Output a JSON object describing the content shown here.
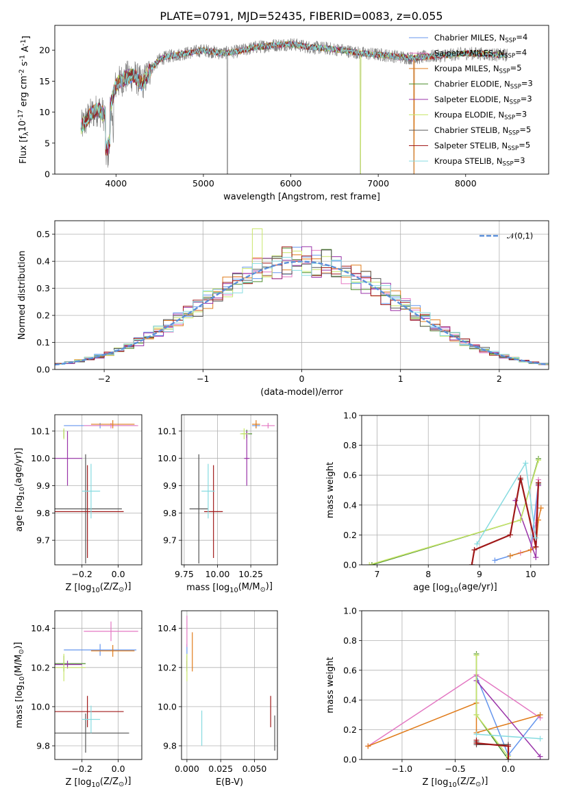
{
  "title": "PLATE=0791, MJD=52435, FIBERID=0083, z=0.055",
  "colors": {
    "chabrier_miles": "#6495ed",
    "salpeter_miles": "#e377c2",
    "kroupa_miles": "#e07b1a",
    "chabrier_elodie": "#4f8f2f",
    "salpeter_elodie": "#9932a8",
    "kroupa_elodie": "#c8e66a",
    "chabrier_stelib": "#555555",
    "salpeter_stelib": "#a01818",
    "kroupa_stelib": "#86dbe0",
    "data": "#808080",
    "normal": "#5b8fd9"
  },
  "chart_data": [
    {
      "type": "line",
      "xlabel": "wavelength [Angstrom, rest frame]",
      "ylabel": "Flux [f$_\\lambda$10$^{-17}$ erg cm$^{-2}$ s$^{-1}$ A$^{-1}$]",
      "xlim": [
        3300,
        8950
      ],
      "ylim": [
        0,
        24
      ],
      "xticks": [
        4000,
        5000,
        6000,
        7000,
        8000
      ],
      "yticks": [
        0,
        5,
        10,
        15,
        20
      ],
      "legend_position": "upper right",
      "legend": [
        {
          "label": "Chabrier MILES, N$_{SSP}$=4",
          "color": "#6495ed"
        },
        {
          "label": "Salpeter MILES, N$_{SSP}$=4",
          "color": "#e377c2"
        },
        {
          "label": "Kroupa MILES, N$_{SSP}$=5",
          "color": "#e07b1a"
        },
        {
          "label": "Chabrier ELODIE, N$_{SSP}$=3",
          "color": "#4f8f2f"
        },
        {
          "label": "Salpeter ELODIE, N$_{SSP}$=3",
          "color": "#9932a8"
        },
        {
          "label": "Kroupa ELODIE, N$_{SSP}$=3",
          "color": "#c8e66a"
        },
        {
          "label": "Chabrier STELIB, N$_{SSP}$=5",
          "color": "#555555"
        },
        {
          "label": "Salpeter STELIB, N$_{SSP}$=5",
          "color": "#a01818"
        },
        {
          "label": "Kroupa STELIB, N$_{SSP}$=3",
          "color": "#86dbe0"
        }
      ],
      "continuum": {
        "wavelength": [
          3600,
          3700,
          3800,
          3900,
          4000,
          4100,
          4200,
          4300,
          4400,
          4500,
          4600,
          4800,
          5000,
          5200,
          5400,
          5600,
          5800,
          6000,
          6200,
          6400,
          6600,
          6800,
          7000,
          7200,
          7400,
          7600,
          7800,
          8000,
          8200,
          8400
        ],
        "flux": [
          7.5,
          9.5,
          10.5,
          9.0,
          14.5,
          15.5,
          16.0,
          14.5,
          17.0,
          18.5,
          19.0,
          19.5,
          20.0,
          19.5,
          19.8,
          20.5,
          20.8,
          21.0,
          20.5,
          20.3,
          20.0,
          19.5,
          19.3,
          19.0,
          18.7,
          19.0,
          19.2,
          19.5,
          19.4,
          19.2
        ]
      }
    },
    {
      "type": "line",
      "xlabel": "(data-model)/error",
      "ylabel": "Normed distribution",
      "xlim": [
        -2.5,
        2.5
      ],
      "ylim": [
        0,
        0.55
      ],
      "xticks": [
        -2,
        -1,
        0,
        1,
        2
      ],
      "yticks": [
        0.0,
        0.1,
        0.2,
        0.3,
        0.4,
        0.5
      ],
      "legend_position": "upper right",
      "normal_label": "$\\mathcal{N}(0,1)$"
    },
    {
      "type": "scatter",
      "xlabel": "Z [log$_{10}$(Z/Z$_\\odot$)]",
      "ylabel": "age  [log$_{10}$(age/yr)]",
      "xlim": [
        -0.35,
        0.13
      ],
      "ylim": [
        9.61,
        10.16
      ],
      "xticks": [
        -0.2,
        0.0
      ],
      "yticks": [
        9.7,
        9.8,
        9.9,
        10.0,
        10.1
      ],
      "points": [
        {
          "series": "Chabrier MILES",
          "x": -0.1,
          "y": 10.12,
          "xerr": 0.2,
          "yerr": 0.01
        },
        {
          "series": "Salpeter MILES",
          "x": -0.04,
          "y": 10.12,
          "xerr": 0.15,
          "yerr": 0.01
        },
        {
          "series": "Kroupa MILES",
          "x": -0.03,
          "y": 10.125,
          "xerr": 0.12,
          "yerr": 0.015
        },
        {
          "series": "Chabrier ELODIE",
          "x": -0.3,
          "y": 10.09,
          "xerr": 0.0,
          "yerr": 0.015
        },
        {
          "series": "Salpeter ELODIE",
          "x": -0.28,
          "y": 10.0,
          "xerr": 0.08,
          "yerr": 0.1
        },
        {
          "series": "Kroupa ELODIE",
          "x": -0.3,
          "y": 10.09,
          "xerr": 0.0,
          "yerr": 0.02
        },
        {
          "series": "Chabrier STELIB",
          "x": -0.18,
          "y": 9.815,
          "xerr": 0.2,
          "yerr": 0.2
        },
        {
          "series": "Salpeter STELIB",
          "x": -0.17,
          "y": 9.805,
          "xerr": 0.2,
          "yerr": 0.17
        },
        {
          "series": "Kroupa STELIB",
          "x": -0.15,
          "y": 9.88,
          "xerr": 0.05,
          "yerr": 0.1
        }
      ]
    },
    {
      "type": "scatter",
      "xlabel": "mass [log$_{10}$(M/M$_\\odot$)]",
      "ylabel": "",
      "xlim": [
        9.73,
        10.45
      ],
      "ylim": [
        9.61,
        10.16
      ],
      "xticks": [
        9.75,
        10.0,
        10.25
      ],
      "yticks": [
        9.7,
        9.8,
        9.9,
        10.0,
        10.1
      ],
      "points": [
        {
          "series": "Chabrier MILES",
          "x": 10.29,
          "y": 10.12,
          "xerr": 0.03,
          "yerr": 0.01
        },
        {
          "series": "Salpeter MILES",
          "x": 10.38,
          "y": 10.12,
          "xerr": 0.05,
          "yerr": 0.01
        },
        {
          "series": "Kroupa MILES",
          "x": 10.29,
          "y": 10.125,
          "xerr": 0.03,
          "yerr": 0.015
        },
        {
          "series": "Chabrier ELODIE",
          "x": 10.22,
          "y": 10.09,
          "xerr": 0.04,
          "yerr": 0.015
        },
        {
          "series": "Salpeter ELODIE",
          "x": 10.22,
          "y": 10.0,
          "xerr": 0.02,
          "yerr": 0.1
        },
        {
          "series": "Kroupa ELODIE",
          "x": 10.2,
          "y": 10.09,
          "xerr": 0.03,
          "yerr": 0.02
        },
        {
          "series": "Chabrier STELIB",
          "x": 9.86,
          "y": 9.815,
          "xerr": 0.07,
          "yerr": 0.2
        },
        {
          "series": "Salpeter STELIB",
          "x": 9.97,
          "y": 9.805,
          "xerr": 0.07,
          "yerr": 0.17
        },
        {
          "series": "Kroupa STELIB",
          "x": 9.93,
          "y": 9.88,
          "xerr": 0.05,
          "yerr": 0.1
        }
      ]
    },
    {
      "type": "line",
      "xlabel": "age  [log$_{10}$(age/yr)]",
      "ylabel": "mass weight",
      "xlim": [
        6.7,
        10.35
      ],
      "ylim": [
        0,
        1
      ],
      "xticks": [
        7,
        8,
        9,
        10
      ],
      "yticks": [
        0.0,
        0.2,
        0.4,
        0.6,
        0.8,
        1.0
      ],
      "series": [
        {
          "name": "Chabrier MILES",
          "x": [
            9.3,
            9.6,
            10.0,
            10.15
          ],
          "y": [
            0.03,
            0.06,
            0.1,
            0.55
          ]
        },
        {
          "name": "Salpeter MILES",
          "x": [
            9.8,
            10.0,
            10.1,
            10.15
          ],
          "y": [
            0.08,
            0.1,
            0.28,
            0.57
          ]
        },
        {
          "name": "Kroupa MILES",
          "x": [
            9.6,
            10.0,
            10.1,
            10.15,
            10.2
          ],
          "y": [
            0.06,
            0.1,
            0.12,
            0.3,
            0.38
          ]
        },
        {
          "name": "Chabrier ELODIE",
          "x": [
            6.9,
            9.8,
            10.15
          ],
          "y": [
            0.0,
            0.3,
            0.71
          ]
        },
        {
          "name": "Salpeter ELODIE",
          "x": [
            9.7,
            10.1,
            10.15
          ],
          "y": [
            0.43,
            0.05,
            0.53
          ]
        },
        {
          "name": "Kroupa ELODIE",
          "x": [
            6.85,
            9.8,
            10.15
          ],
          "y": [
            0.0,
            0.3,
            0.7
          ]
        },
        {
          "name": "Chabrier STELIB",
          "x": [
            8.85,
            8.9,
            9.6,
            9.8,
            10.1,
            10.15
          ],
          "y": [
            0.0,
            0.1,
            0.2,
            0.57,
            0.12,
            0.54
          ]
        },
        {
          "name": "Salpeter STELIB",
          "x": [
            8.85,
            8.9,
            9.6,
            9.8,
            10.1,
            10.15
          ],
          "y": [
            0.0,
            0.1,
            0.2,
            0.58,
            0.12,
            0.55
          ]
        },
        {
          "name": "Kroupa STELIB",
          "x": [
            8.95,
            9.9,
            10.1
          ],
          "y": [
            0.14,
            0.68,
            0.18
          ]
        }
      ]
    },
    {
      "type": "scatter",
      "xlabel": "Z [log$_{10}$(Z/Z$_\\odot$)]",
      "ylabel": "mass [log$_{10}$(M/M$_\\odot$)]",
      "xlim": [
        -0.35,
        0.13
      ],
      "ylim": [
        9.73,
        10.49
      ],
      "xticks": [
        -0.2,
        0.0
      ],
      "yticks": [
        9.8,
        10.0,
        10.2,
        10.4
      ],
      "points": [
        {
          "series": "Chabrier MILES",
          "x": -0.1,
          "y": 10.29,
          "xerr": 0.2,
          "yerr": 0.03
        },
        {
          "series": "Salpeter MILES",
          "x": -0.04,
          "y": 10.385,
          "xerr": 0.15,
          "yerr": 0.05
        },
        {
          "series": "Kroupa MILES",
          "x": -0.03,
          "y": 10.285,
          "xerr": 0.12,
          "yerr": 0.03
        },
        {
          "series": "Chabrier ELODIE",
          "x": -0.3,
          "y": 10.22,
          "xerr": 0.12,
          "yerr": 0.04
        },
        {
          "series": "Salpeter ELODIE",
          "x": -0.28,
          "y": 10.215,
          "xerr": 0.08,
          "yerr": 0.02
        },
        {
          "series": "Kroupa ELODIE",
          "x": -0.3,
          "y": 10.2,
          "xerr": 0.12,
          "yerr": 0.07
        },
        {
          "series": "Chabrier STELIB",
          "x": -0.18,
          "y": 9.865,
          "xerr": 0.24,
          "yerr": 0.1
        },
        {
          "series": "Salpeter STELIB",
          "x": -0.17,
          "y": 9.975,
          "xerr": 0.2,
          "yerr": 0.08
        },
        {
          "series": "Kroupa STELIB",
          "x": -0.15,
          "y": 9.935,
          "xerr": 0.05,
          "yerr": 0.07
        }
      ]
    },
    {
      "type": "scatter",
      "xlabel": "E(B-V)",
      "ylabel": "",
      "xlim": [
        -0.004,
        0.067
      ],
      "ylim": [
        9.73,
        10.49
      ],
      "xticks": [
        0.0,
        0.025,
        0.05
      ],
      "xticklabels": [
        "0.000",
        "0.025",
        "0.050"
      ],
      "yticks": [
        9.8,
        10.0,
        10.2,
        10.4
      ],
      "points": [
        {
          "series": "Chabrier MILES",
          "x": 0.0,
          "y": 10.29,
          "xerr": 0.0,
          "yerr": 0.03
        },
        {
          "series": "Salpeter MILES",
          "x": 0.0,
          "y": 10.385,
          "xerr": 0.0,
          "yerr": 0.08
        },
        {
          "series": "Kroupa MILES",
          "x": 0.004,
          "y": 10.28,
          "xerr": 0.0,
          "yerr": 0.1
        },
        {
          "series": "Chabrier ELODIE",
          "x": 0.0,
          "y": 10.22,
          "xerr": 0.0,
          "yerr": 0.04
        },
        {
          "series": "Salpeter ELODIE",
          "x": 0.0,
          "y": 10.215,
          "xerr": 0.0,
          "yerr": 0.02
        },
        {
          "series": "Kroupa ELODIE",
          "x": 0.0,
          "y": 10.2,
          "xerr": 0.0,
          "yerr": 0.07
        },
        {
          "series": "Chabrier STELIB",
          "x": 0.065,
          "y": 9.865,
          "xerr": 0.0,
          "yerr": 0.09
        },
        {
          "series": "Salpeter STELIB",
          "x": 0.062,
          "y": 9.975,
          "xerr": 0.0,
          "yerr": 0.08
        },
        {
          "series": "Kroupa STELIB",
          "x": 0.011,
          "y": 9.89,
          "xerr": 0.0,
          "yerr": 0.09
        }
      ]
    },
    {
      "type": "line",
      "xlabel": "Z [log$_{10}$(Z/Z$_\\odot$)]",
      "ylabel": "mass weight",
      "xlim": [
        -1.38,
        0.38
      ],
      "ylim": [
        0,
        1
      ],
      "xticks": [
        -1.0,
        -0.5,
        0.0
      ],
      "yticks": [
        0.0,
        0.2,
        0.4,
        0.6,
        0.8,
        1.0
      ],
      "series": [
        {
          "name": "Chabrier MILES",
          "x": [
            -0.3,
            0.0,
            0.3
          ],
          "y": [
            0.56,
            0.03,
            0.3
          ]
        },
        {
          "name": "Salpeter MILES",
          "x": [
            -1.32,
            -0.3,
            0.3
          ],
          "y": [
            0.09,
            0.57,
            0.28
          ]
        },
        {
          "name": "Kroupa MILES",
          "x": [
            -1.32,
            -0.3,
            -0.3,
            0.3
          ],
          "y": [
            0.09,
            0.38,
            0.18,
            0.3
          ]
        },
        {
          "name": "Chabrier ELODIE",
          "x": [
            -0.3,
            -0.3,
            0.0
          ],
          "y": [
            0.71,
            0.3,
            0.0
          ]
        },
        {
          "name": "Salpeter ELODIE",
          "x": [
            -0.3,
            0.3
          ],
          "y": [
            0.53,
            0.02
          ]
        },
        {
          "name": "Kroupa ELODIE",
          "x": [
            -0.3,
            -0.3,
            0.0
          ],
          "y": [
            0.7,
            0.3,
            0.02
          ]
        },
        {
          "name": "Chabrier STELIB",
          "x": [
            -0.3,
            -0.3,
            0.0
          ],
          "y": [
            0.12,
            0.1,
            0.1
          ]
        },
        {
          "name": "Salpeter STELIB",
          "x": [
            -0.3,
            -0.3,
            0.0,
            0.0
          ],
          "y": [
            0.13,
            0.11,
            0.09,
            0.0
          ]
        },
        {
          "name": "Kroupa STELIB",
          "x": [
            -0.3,
            0.3
          ],
          "y": [
            0.17,
            0.14
          ]
        }
      ]
    }
  ]
}
